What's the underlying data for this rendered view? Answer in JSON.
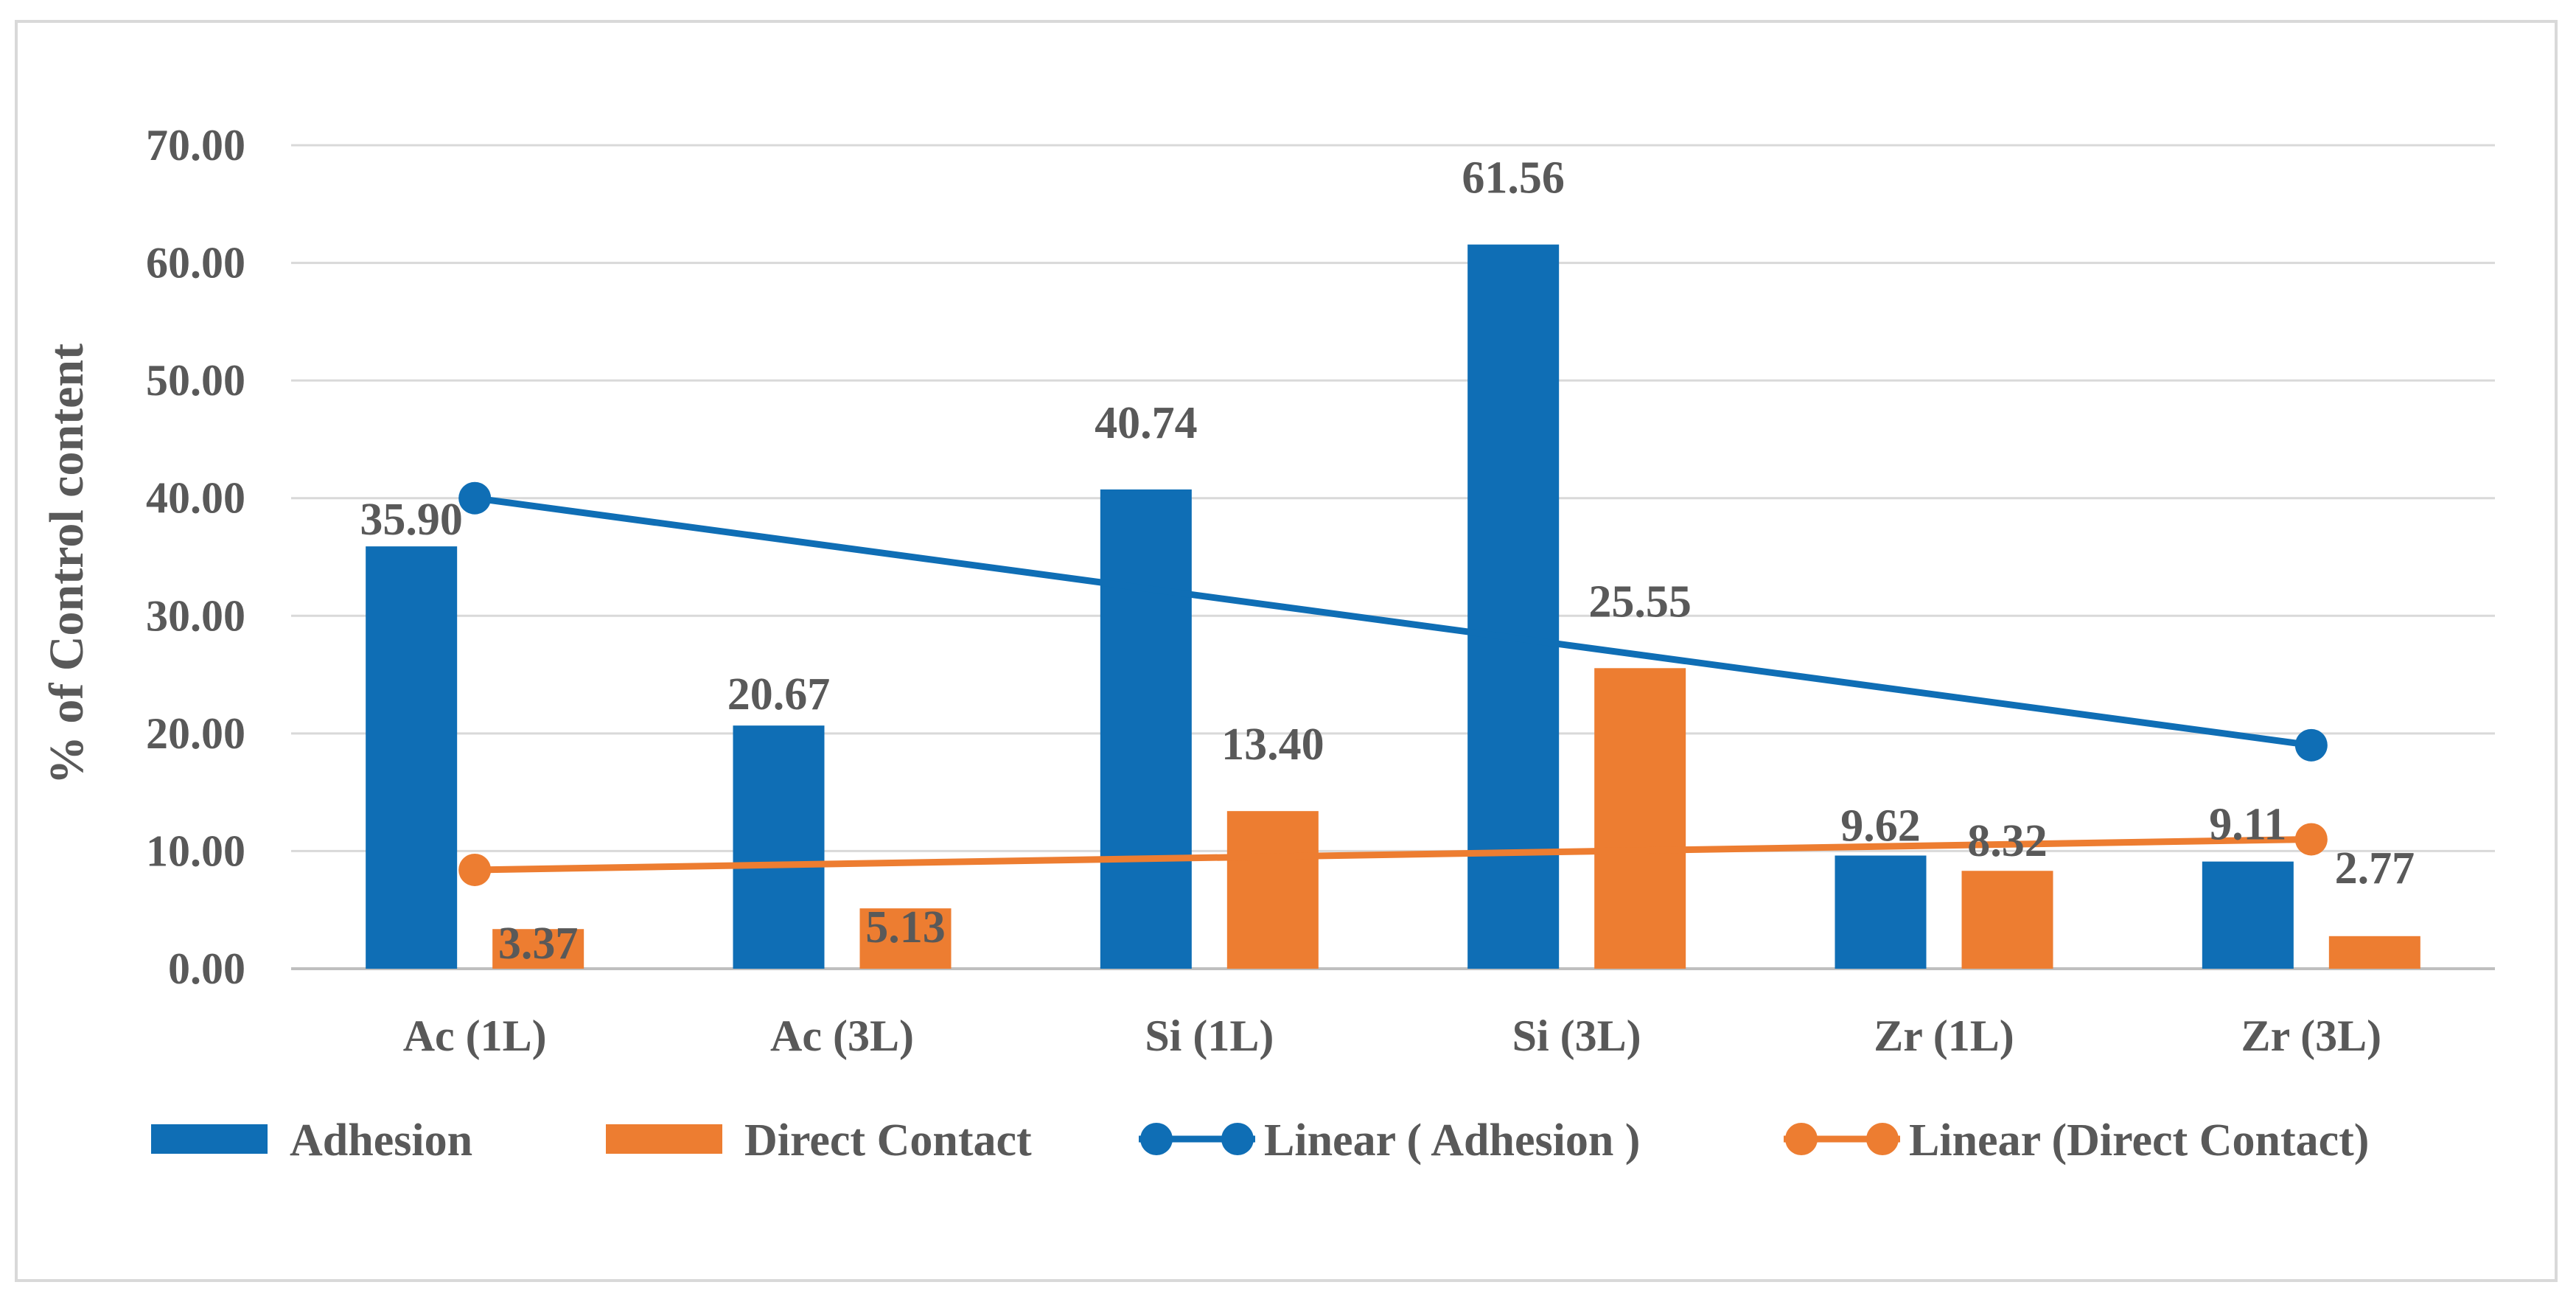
{
  "chart_data": {
    "type": "bar",
    "title": "",
    "xlabel": "",
    "ylabel": "% of Control content",
    "ylim": [
      0,
      70
    ],
    "yticks": [
      "0.00",
      "10.00",
      "20.00",
      "30.00",
      "40.00",
      "50.00",
      "60.00",
      "70.00"
    ],
    "grid": true,
    "legend_position": "bottom",
    "categories": [
      "Ac (1L)",
      "Ac (3L)",
      "Si (1L)",
      "Si (3L)",
      "Zr (1L)",
      "Zr (3L)"
    ],
    "series": [
      {
        "name": "Adhesion",
        "kind": "bar",
        "color": "#0f6eb5",
        "values": [
          35.9,
          20.67,
          40.74,
          61.56,
          9.62,
          9.11
        ],
        "labels": [
          "35.90",
          "20.67",
          "40.74",
          "61.56",
          "9.62",
          "9.11"
        ]
      },
      {
        "name": "Direct Contact",
        "kind": "bar",
        "color": "#ed7d31",
        "values": [
          3.37,
          5.13,
          13.4,
          25.55,
          8.32,
          2.77
        ],
        "labels": [
          "3.37",
          "5.13",
          "13.40",
          "25.55",
          "8.32",
          "2.77"
        ]
      }
    ],
    "trendlines": [
      {
        "name": "Linear ( Adhesion )",
        "kind": "line",
        "color": "#0f6eb5",
        "start": {
          "category": "Ac (1L)",
          "value": 40.0
        },
        "end": {
          "category": "Zr (3L)",
          "value": 19.0
        }
      },
      {
        "name": "Linear (Direct Contact)",
        "kind": "line",
        "color": "#ed7d31",
        "start": {
          "category": "Ac (1L)",
          "value": 8.4
        },
        "end": {
          "category": "Zr (3L)",
          "value": 11.0
        }
      }
    ]
  }
}
